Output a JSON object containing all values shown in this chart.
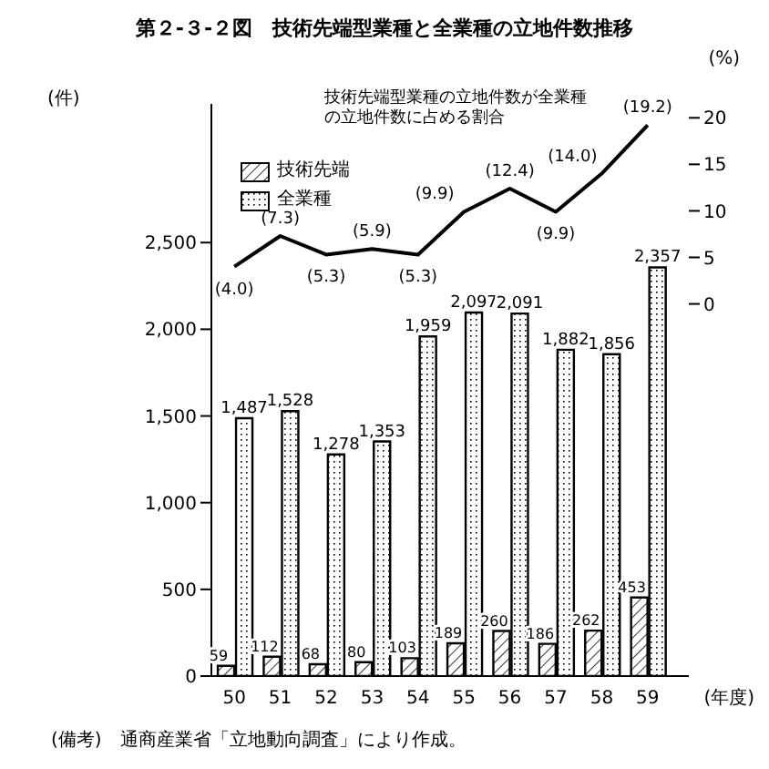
{
  "chart_data": {
    "type": "bar",
    "title": "第２-３-２図　技術先端型業種と全業種の立地件数推移",
    "categories": [
      "50",
      "51",
      "52",
      "53",
      "54",
      "55",
      "56",
      "57",
      "58",
      "59"
    ],
    "xlabel": "(年度)",
    "ylabel": "(件)",
    "y2label": "(%)",
    "series": [
      {
        "name": "技術先端",
        "color": "#000000",
        "values": [
          59,
          112,
          68,
          80,
          103,
          189,
          260,
          186,
          262,
          453
        ],
        "value_labels": [
          "59",
          "112",
          "68",
          "80",
          "103",
          "189",
          "260",
          "186",
          "262",
          "453"
        ]
      },
      {
        "name": "全業種",
        "color": "#000000",
        "values": [
          1487,
          1528,
          1278,
          1353,
          1959,
          2097,
          2091,
          1882,
          1856,
          2357
        ],
        "value_labels": [
          "1,487",
          "1,528",
          "1,278",
          "1,353",
          "1,959",
          "2,097",
          "2,091",
          "1,882",
          "1,856",
          "2,357"
        ]
      },
      {
        "name": "技術先端型業種の立地件数が全業種の立地件数に占める割合",
        "type": "line",
        "axis": "y2",
        "color": "#000000",
        "values": [
          4.0,
          7.3,
          5.3,
          5.9,
          5.3,
          9.9,
          12.4,
          9.9,
          14.0,
          19.2
        ],
        "value_labels": [
          "(4.0)",
          "(7.3)",
          "(5.3)",
          "(5.9)",
          "(5.3)",
          "(9.9)",
          "(12.4)",
          "(9.9)",
          "(14.0)",
          "(19.2)"
        ]
      }
    ],
    "ylim": [
      0,
      3300
    ],
    "yticks": [
      0,
      500,
      {
        "value": 1000,
        "label": "1,000"
      },
      {
        "value": 1500,
        "label": "1,500"
      },
      {
        "value": 2000,
        "label": "2,000"
      },
      {
        "value": 2500,
        "label": "2,500"
      }
    ],
    "y2lim": [
      -40,
      21.5
    ],
    "y2ticks": [
      0,
      5,
      10,
      15,
      20
    ],
    "legend": "top left",
    "grid": false,
    "marker": "none",
    "line_style": "solid",
    "annotations": [
      "(備考)　通商産業省「立地動向調査」により作成。"
    ]
  }
}
